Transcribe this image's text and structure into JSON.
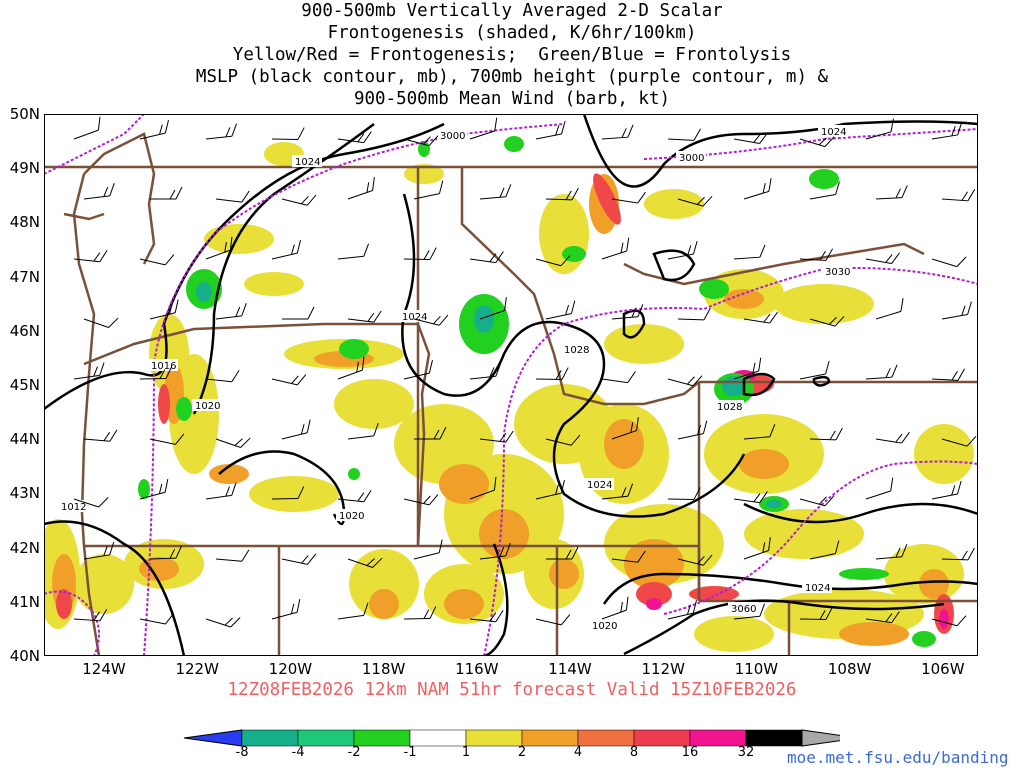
{
  "title": {
    "line1": "900-500mb Vertically Averaged 2-D Scalar",
    "line2": "Frontogenesis (shaded, K/6hr/100km)",
    "line3": "Yellow/Red = Frontogenesis;  Green/Blue = Frontolysis",
    "line4": "MSLP (black contour, mb), 700mb height (purple contour, m) &",
    "line5": "900-500mb Mean Wind (barb, kt)"
  },
  "lat_labels": [
    "50N",
    "49N",
    "48N",
    "47N",
    "46N",
    "45N",
    "44N",
    "43N",
    "42N",
    "41N",
    "40N"
  ],
  "lon_labels": [
    "124W",
    "122W",
    "120W",
    "118W",
    "116W",
    "114W",
    "112W",
    "110W",
    "108W",
    "106W"
  ],
  "valid_line": "12Z08FEB2026 12km NAM 51hr forecast Valid 15Z10FEB2026",
  "credit": "moe.met.fsu.edu/banding",
  "colorbar": {
    "labels": [
      "-8",
      "-4",
      "-2",
      "-1",
      "1",
      "2",
      "4",
      "8",
      "16",
      "32"
    ],
    "colors": [
      "#2a3cf0",
      "#15b08a",
      "#1ec878",
      "#22d020",
      "#ffffff",
      "#e8e038",
      "#f0a028",
      "#f07040",
      "#f03c50",
      "#f01490",
      "#000000",
      "#a8a8a8"
    ]
  },
  "contour_labels": {
    "mslp": [
      "1024",
      "1024",
      "1024",
      "1016",
      "1020",
      "1012",
      "1020",
      "1028",
      "1028",
      "1024",
      "1024",
      "1020"
    ],
    "height700": [
      "3000",
      "3000",
      "3030",
      "3060"
    ]
  },
  "colors": {
    "mslp": "#000000",
    "height700": "#b020d0",
    "borders": "#7a5038",
    "title": "#000000",
    "valid": "#f06060",
    "credit": "#3c6ad8"
  }
}
